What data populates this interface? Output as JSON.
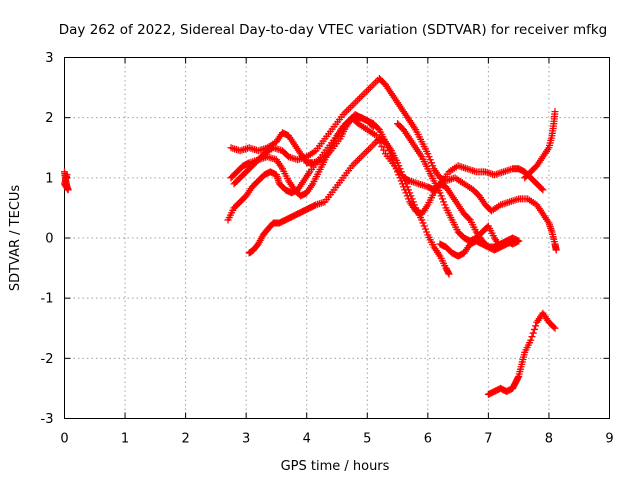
{
  "chart_data": {
    "type": "scatter",
    "title": "Day 262 of 2022, Sidereal Day-to-day VTEC variation (SDTVAR) for receiver mfkg",
    "xlabel": "GPS time / hours",
    "ylabel": "SDTVAR / TECUs",
    "xlim": [
      0,
      9
    ],
    "ylim": [
      -3,
      3
    ],
    "x_ticks": [
      "0",
      "1",
      "2",
      "3",
      "4",
      "5",
      "6",
      "7",
      "8",
      "9"
    ],
    "y_ticks": [
      "-3",
      "-2",
      "-1",
      "0",
      "1",
      "2",
      "3"
    ],
    "grid": true,
    "legend": "none",
    "marker": "plus",
    "color": "#ff0000",
    "series": [
      {
        "points": [
          [
            0.0,
            1.1
          ],
          [
            0.02,
            0.95
          ],
          [
            0.04,
            0.85
          ],
          [
            0.06,
            0.8
          ],
          [
            0.0,
            0.9
          ],
          [
            0.04,
            1.05
          ]
        ]
      },
      {
        "points": [
          [
            2.75,
            1.5
          ],
          [
            2.9,
            1.45
          ],
          [
            3.05,
            1.5
          ],
          [
            3.2,
            1.45
          ],
          [
            3.35,
            1.5
          ],
          [
            3.5,
            1.6
          ],
          [
            3.6,
            1.75
          ],
          [
            3.7,
            1.7
          ],
          [
            3.8,
            1.55
          ],
          [
            3.9,
            1.4
          ],
          [
            4.0,
            1.25
          ],
          [
            4.1,
            1.25
          ],
          [
            4.25,
            1.3
          ],
          [
            4.4,
            1.45
          ],
          [
            4.55,
            1.65
          ],
          [
            4.65,
            1.85
          ],
          [
            4.75,
            2.0
          ],
          [
            4.85,
            1.9
          ],
          [
            5.0,
            1.8
          ],
          [
            5.15,
            1.7
          ],
          [
            5.3,
            1.4
          ],
          [
            5.45,
            1.2
          ],
          [
            5.6,
            1.0
          ],
          [
            5.7,
            0.95
          ],
          [
            5.85,
            0.9
          ],
          [
            6.0,
            0.85
          ],
          [
            6.1,
            0.8
          ],
          [
            6.2,
            0.9
          ],
          [
            6.35,
            1.1
          ],
          [
            6.5,
            1.2
          ],
          [
            6.65,
            1.15
          ],
          [
            6.8,
            1.1
          ],
          [
            6.95,
            1.1
          ],
          [
            7.1,
            1.05
          ],
          [
            7.25,
            1.1
          ],
          [
            7.4,
            1.15
          ],
          [
            7.5,
            1.15
          ],
          [
            7.6,
            1.1
          ],
          [
            7.7,
            1.0
          ],
          [
            7.8,
            0.9
          ],
          [
            7.9,
            0.8
          ]
        ]
      },
      {
        "points": [
          [
            2.8,
            0.9
          ],
          [
            2.9,
            1.0
          ],
          [
            3.0,
            1.1
          ],
          [
            3.1,
            1.2
          ],
          [
            3.2,
            1.3
          ],
          [
            3.35,
            1.35
          ],
          [
            3.5,
            1.3
          ],
          [
            3.6,
            1.15
          ],
          [
            3.7,
            0.95
          ],
          [
            3.8,
            0.8
          ],
          [
            3.9,
            0.7
          ],
          [
            4.0,
            0.75
          ],
          [
            4.1,
            0.9
          ],
          [
            4.2,
            1.1
          ],
          [
            4.3,
            1.3
          ],
          [
            4.4,
            1.5
          ],
          [
            4.5,
            1.7
          ],
          [
            4.6,
            1.85
          ],
          [
            4.7,
            1.95
          ],
          [
            4.8,
            2.0
          ],
          [
            4.9,
            2.0
          ],
          [
            5.0,
            1.95
          ],
          [
            5.1,
            1.9
          ],
          [
            5.2,
            1.8
          ],
          [
            5.3,
            1.6
          ],
          [
            5.4,
            1.35
          ],
          [
            5.5,
            1.1
          ],
          [
            5.6,
            0.85
          ],
          [
            5.7,
            0.6
          ],
          [
            5.8,
            0.45
          ],
          [
            5.9,
            0.4
          ],
          [
            6.0,
            0.55
          ],
          [
            6.1,
            0.75
          ],
          [
            6.2,
            0.9
          ],
          [
            6.3,
            0.85
          ],
          [
            6.4,
            0.7
          ],
          [
            6.5,
            0.55
          ],
          [
            6.6,
            0.4
          ],
          [
            6.7,
            0.3
          ],
          [
            6.8,
            0.1
          ],
          [
            6.9,
            -0.05
          ],
          [
            7.0,
            -0.15
          ],
          [
            7.1,
            -0.2
          ],
          [
            7.2,
            -0.15
          ],
          [
            7.3,
            -0.05
          ],
          [
            7.4,
            -0.1
          ],
          [
            7.5,
            -0.05
          ]
        ]
      },
      {
        "points": [
          [
            2.75,
            1.0
          ],
          [
            2.85,
            1.1
          ],
          [
            2.95,
            1.2
          ],
          [
            3.05,
            1.25
          ],
          [
            3.2,
            1.3
          ],
          [
            3.3,
            1.4
          ],
          [
            3.45,
            1.5
          ],
          [
            3.6,
            1.45
          ],
          [
            3.7,
            1.35
          ],
          [
            3.85,
            1.3
          ],
          [
            4.0,
            1.35
          ],
          [
            4.15,
            1.45
          ],
          [
            4.3,
            1.65
          ],
          [
            4.45,
            1.85
          ],
          [
            4.6,
            2.05
          ],
          [
            4.75,
            2.2
          ],
          [
            4.9,
            2.35
          ],
          [
            5.05,
            2.5
          ],
          [
            5.2,
            2.65
          ],
          [
            5.3,
            2.55
          ],
          [
            5.4,
            2.4
          ],
          [
            5.5,
            2.25
          ],
          [
            5.6,
            2.1
          ],
          [
            5.7,
            1.95
          ],
          [
            5.8,
            1.8
          ],
          [
            5.9,
            1.6
          ],
          [
            6.0,
            1.4
          ],
          [
            6.1,
            1.15
          ],
          [
            6.2,
            1.0
          ],
          [
            6.3,
            0.95
          ],
          [
            6.45,
            1.0
          ],
          [
            6.6,
            0.9
          ],
          [
            6.75,
            0.8
          ],
          [
            6.85,
            0.7
          ],
          [
            6.95,
            0.55
          ],
          [
            7.05,
            0.45
          ],
          [
            7.2,
            0.55
          ],
          [
            7.35,
            0.6
          ],
          [
            7.5,
            0.65
          ],
          [
            7.65,
            0.65
          ],
          [
            7.8,
            0.55
          ],
          [
            7.9,
            0.4
          ],
          [
            8.0,
            0.25
          ],
          [
            8.05,
            0.1
          ],
          [
            8.1,
            -0.1
          ],
          [
            8.12,
            -0.2
          ]
        ]
      },
      {
        "points": [
          [
            2.7,
            0.3
          ],
          [
            2.8,
            0.5
          ],
          [
            2.9,
            0.6
          ],
          [
            3.0,
            0.7
          ],
          [
            3.1,
            0.85
          ],
          [
            3.2,
            0.95
          ],
          [
            3.3,
            1.05
          ],
          [
            3.4,
            1.1
          ],
          [
            3.5,
            1.05
          ],
          [
            3.55,
            0.9
          ],
          [
            3.65,
            0.8
          ],
          [
            3.75,
            0.75
          ],
          [
            3.85,
            0.8
          ],
          [
            3.95,
            0.95
          ],
          [
            4.05,
            1.1
          ],
          [
            4.2,
            1.3
          ],
          [
            4.35,
            1.5
          ],
          [
            4.5,
            1.7
          ],
          [
            4.6,
            1.85
          ],
          [
            4.7,
            1.95
          ],
          [
            4.8,
            2.05
          ],
          [
            4.9,
            2.0
          ],
          [
            5.0,
            1.95
          ],
          [
            5.1,
            1.85
          ]
        ]
      },
      {
        "points": [
          [
            3.05,
            -0.25
          ],
          [
            3.12,
            -0.2
          ],
          [
            3.2,
            -0.1
          ],
          [
            3.28,
            0.05
          ],
          [
            3.36,
            0.15
          ],
          [
            3.45,
            0.25
          ],
          [
            3.55,
            0.25
          ],
          [
            3.65,
            0.3
          ],
          [
            3.75,
            0.35
          ],
          [
            3.85,
            0.4
          ],
          [
            3.95,
            0.45
          ],
          [
            4.05,
            0.5
          ],
          [
            4.15,
            0.55
          ],
          [
            4.3,
            0.6
          ],
          [
            4.45,
            0.8
          ],
          [
            4.6,
            1.0
          ],
          [
            4.75,
            1.2
          ],
          [
            4.9,
            1.35
          ],
          [
            5.05,
            1.5
          ],
          [
            5.2,
            1.65
          ],
          [
            5.3,
            1.6
          ],
          [
            5.4,
            1.45
          ],
          [
            5.5,
            1.25
          ],
          [
            5.6,
            1.0
          ],
          [
            5.7,
            0.75
          ],
          [
            5.8,
            0.5
          ],
          [
            5.9,
            0.3
          ],
          [
            6.0,
            0.05
          ],
          [
            6.1,
            -0.15
          ],
          [
            6.2,
            -0.3
          ],
          [
            6.3,
            -0.5
          ],
          [
            6.35,
            -0.6
          ]
        ]
      },
      {
        "points": [
          [
            5.5,
            1.9
          ],
          [
            5.6,
            1.8
          ],
          [
            5.7,
            1.65
          ],
          [
            5.8,
            1.5
          ],
          [
            5.9,
            1.35
          ],
          [
            6.0,
            1.15
          ],
          [
            6.1,
            0.95
          ],
          [
            6.2,
            0.75
          ],
          [
            6.3,
            0.5
          ],
          [
            6.4,
            0.3
          ],
          [
            6.5,
            0.1
          ],
          [
            6.6,
            0.0
          ],
          [
            6.7,
            -0.05
          ],
          [
            6.8,
            0.0
          ],
          [
            6.9,
            0.1
          ],
          [
            7.0,
            0.2
          ],
          [
            7.1,
            0.0
          ],
          [
            7.2,
            -0.15
          ],
          [
            7.3,
            -0.1
          ],
          [
            7.4,
            -0.05
          ]
        ]
      },
      {
        "points": [
          [
            6.2,
            -0.1
          ],
          [
            6.3,
            -0.15
          ],
          [
            6.4,
            -0.25
          ],
          [
            6.5,
            -0.3
          ],
          [
            6.6,
            -0.25
          ],
          [
            6.7,
            -0.1
          ],
          [
            6.8,
            -0.05
          ],
          [
            6.9,
            -0.1
          ],
          [
            7.0,
            -0.15
          ],
          [
            7.1,
            -0.15
          ],
          [
            7.2,
            -0.1
          ],
          [
            7.3,
            -0.05
          ],
          [
            7.4,
            0.0
          ],
          [
            7.5,
            -0.05
          ]
        ]
      },
      {
        "points": [
          [
            7.6,
            1.0
          ],
          [
            7.7,
            1.1
          ],
          [
            7.8,
            1.2
          ],
          [
            7.9,
            1.35
          ],
          [
            8.0,
            1.5
          ],
          [
            8.05,
            1.7
          ],
          [
            8.08,
            1.9
          ],
          [
            8.1,
            2.1
          ]
        ]
      },
      {
        "points": [
          [
            7.0,
            -2.6
          ],
          [
            7.1,
            -2.55
          ],
          [
            7.2,
            -2.5
          ],
          [
            7.3,
            -2.55
          ],
          [
            7.4,
            -2.5
          ],
          [
            7.45,
            -2.4
          ],
          [
            7.5,
            -2.3
          ],
          [
            7.55,
            -2.1
          ],
          [
            7.6,
            -1.9
          ],
          [
            7.7,
            -1.7
          ],
          [
            7.8,
            -1.4
          ],
          [
            7.9,
            -1.25
          ],
          [
            8.0,
            -1.4
          ],
          [
            8.1,
            -1.5
          ]
        ]
      }
    ]
  }
}
